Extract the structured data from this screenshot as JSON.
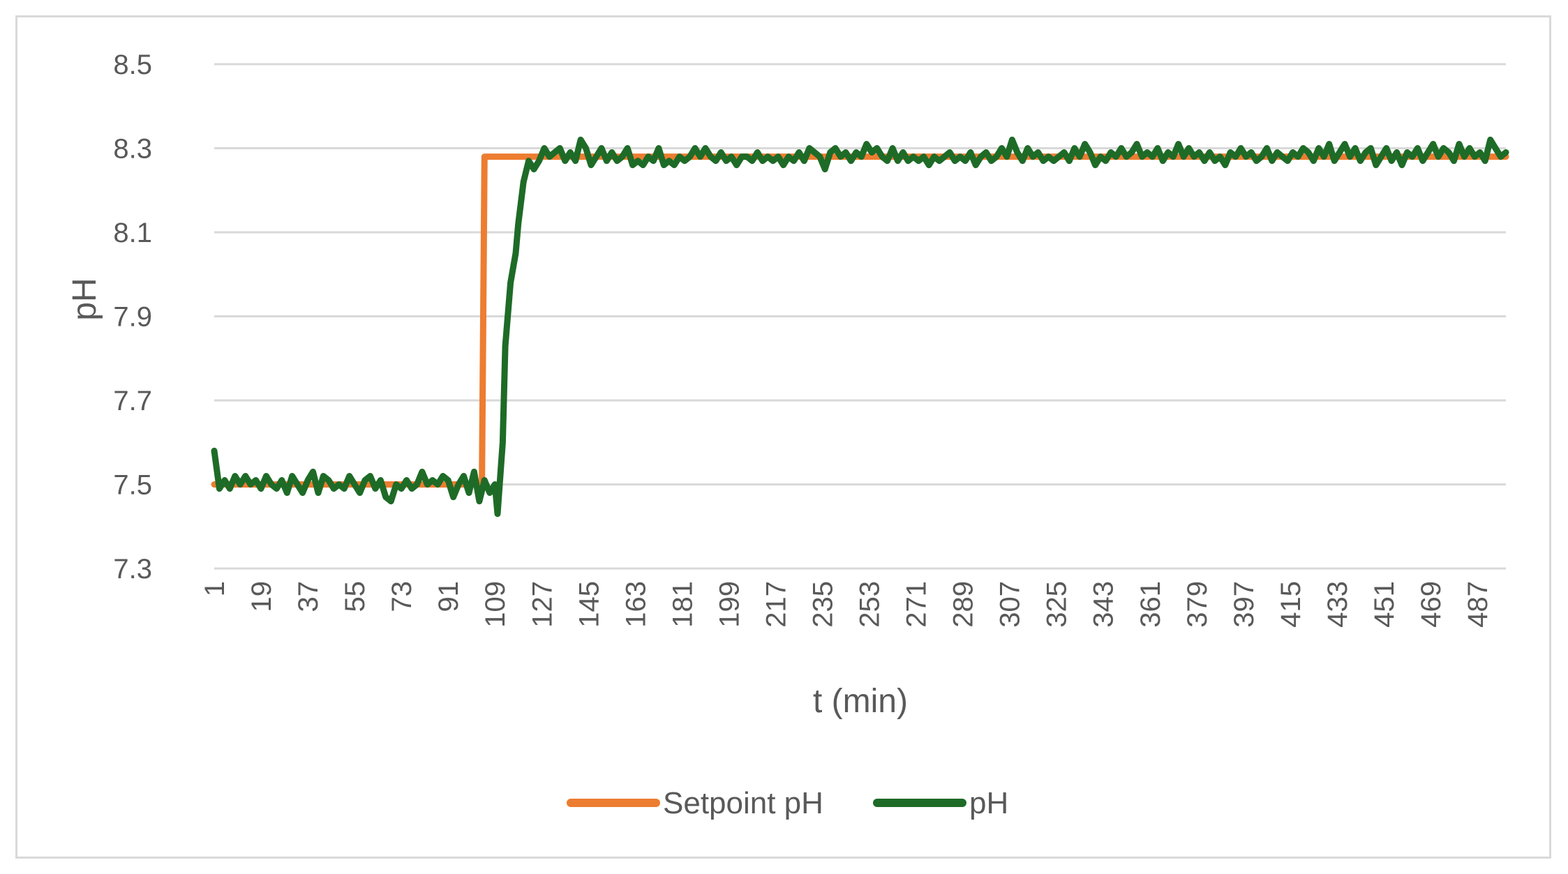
{
  "chart_data": {
    "type": "line",
    "title": "",
    "xlabel": "t (min)",
    "ylabel": "pH",
    "x_range": [
      1,
      498
    ],
    "ylim": [
      7.3,
      8.5
    ],
    "yticks": [
      "7.3",
      "7.5",
      "7.7",
      "7.9",
      "8.1",
      "8.3",
      "8.5"
    ],
    "xticks": [
      "1",
      "19",
      "37",
      "55",
      "73",
      "91",
      "109",
      "127",
      "145",
      "163",
      "181",
      "199",
      "217",
      "235",
      "253",
      "271",
      "289",
      "307",
      "325",
      "343",
      "361",
      "379",
      "397",
      "415",
      "433",
      "451",
      "469",
      "487"
    ],
    "grid": "horizontal",
    "legend_position": "bottom",
    "series": [
      {
        "name": "Setpoint pH",
        "color": "#ed7d31",
        "points": [
          [
            1,
            7.5
          ],
          [
            104,
            7.5
          ],
          [
            105,
            8.28
          ],
          [
            498,
            8.28
          ]
        ]
      },
      {
        "name": "pH",
        "color": "#1e6b27",
        "points": [
          [
            1,
            7.58
          ],
          [
            3,
            7.49
          ],
          [
            5,
            7.51
          ],
          [
            7,
            7.49
          ],
          [
            9,
            7.52
          ],
          [
            11,
            7.5
          ],
          [
            13,
            7.52
          ],
          [
            15,
            7.5
          ],
          [
            17,
            7.51
          ],
          [
            19,
            7.49
          ],
          [
            21,
            7.52
          ],
          [
            23,
            7.5
          ],
          [
            25,
            7.49
          ],
          [
            27,
            7.51
          ],
          [
            29,
            7.48
          ],
          [
            31,
            7.52
          ],
          [
            33,
            7.5
          ],
          [
            35,
            7.48
          ],
          [
            37,
            7.51
          ],
          [
            39,
            7.53
          ],
          [
            41,
            7.48
          ],
          [
            43,
            7.52
          ],
          [
            45,
            7.51
          ],
          [
            47,
            7.49
          ],
          [
            49,
            7.5
          ],
          [
            51,
            7.49
          ],
          [
            53,
            7.52
          ],
          [
            55,
            7.5
          ],
          [
            57,
            7.48
          ],
          [
            59,
            7.51
          ],
          [
            61,
            7.52
          ],
          [
            63,
            7.49
          ],
          [
            65,
            7.51
          ],
          [
            67,
            7.47
          ],
          [
            69,
            7.46
          ],
          [
            71,
            7.5
          ],
          [
            73,
            7.49
          ],
          [
            75,
            7.51
          ],
          [
            77,
            7.49
          ],
          [
            79,
            7.5
          ],
          [
            81,
            7.53
          ],
          [
            83,
            7.5
          ],
          [
            85,
            7.51
          ],
          [
            87,
            7.5
          ],
          [
            89,
            7.52
          ],
          [
            91,
            7.51
          ],
          [
            93,
            7.47
          ],
          [
            95,
            7.5
          ],
          [
            97,
            7.52
          ],
          [
            99,
            7.48
          ],
          [
            101,
            7.53
          ],
          [
            103,
            7.46
          ],
          [
            105,
            7.51
          ],
          [
            107,
            7.48
          ],
          [
            109,
            7.5
          ],
          [
            110,
            7.43
          ],
          [
            112,
            7.6
          ],
          [
            113,
            7.83
          ],
          [
            115,
            7.98
          ],
          [
            117,
            8.05
          ],
          [
            118,
            8.12
          ],
          [
            120,
            8.22
          ],
          [
            122,
            8.27
          ],
          [
            124,
            8.25
          ],
          [
            126,
            8.27
          ],
          [
            128,
            8.3
          ],
          [
            130,
            8.28
          ],
          [
            132,
            8.29
          ],
          [
            134,
            8.3
          ],
          [
            136,
            8.27
          ],
          [
            138,
            8.29
          ],
          [
            140,
            8.27
          ],
          [
            142,
            8.32
          ],
          [
            144,
            8.3
          ],
          [
            146,
            8.26
          ],
          [
            148,
            8.28
          ],
          [
            150,
            8.3
          ],
          [
            152,
            8.27
          ],
          [
            154,
            8.29
          ],
          [
            156,
            8.27
          ],
          [
            158,
            8.28
          ],
          [
            160,
            8.3
          ],
          [
            162,
            8.26
          ],
          [
            164,
            8.27
          ],
          [
            166,
            8.26
          ],
          [
            168,
            8.28
          ],
          [
            170,
            8.27
          ],
          [
            172,
            8.3
          ],
          [
            174,
            8.26
          ],
          [
            176,
            8.27
          ],
          [
            178,
            8.26
          ],
          [
            180,
            8.28
          ],
          [
            182,
            8.27
          ],
          [
            184,
            8.28
          ],
          [
            186,
            8.3
          ],
          [
            188,
            8.28
          ],
          [
            190,
            8.3
          ],
          [
            192,
            8.28
          ],
          [
            194,
            8.27
          ],
          [
            196,
            8.29
          ],
          [
            198,
            8.27
          ],
          [
            200,
            8.28
          ],
          [
            202,
            8.26
          ],
          [
            204,
            8.28
          ],
          [
            206,
            8.28
          ],
          [
            208,
            8.27
          ],
          [
            210,
            8.29
          ],
          [
            212,
            8.27
          ],
          [
            214,
            8.28
          ],
          [
            216,
            8.27
          ],
          [
            218,
            8.28
          ],
          [
            220,
            8.26
          ],
          [
            222,
            8.28
          ],
          [
            224,
            8.27
          ],
          [
            226,
            8.29
          ],
          [
            228,
            8.27
          ],
          [
            230,
            8.3
          ],
          [
            232,
            8.29
          ],
          [
            234,
            8.28
          ],
          [
            236,
            8.25
          ],
          [
            238,
            8.29
          ],
          [
            240,
            8.3
          ],
          [
            242,
            8.28
          ],
          [
            244,
            8.29
          ],
          [
            246,
            8.27
          ],
          [
            248,
            8.29
          ],
          [
            250,
            8.28
          ],
          [
            252,
            8.31
          ],
          [
            254,
            8.29
          ],
          [
            256,
            8.3
          ],
          [
            258,
            8.28
          ],
          [
            260,
            8.27
          ],
          [
            262,
            8.3
          ],
          [
            264,
            8.27
          ],
          [
            266,
            8.29
          ],
          [
            268,
            8.27
          ],
          [
            270,
            8.28
          ],
          [
            272,
            8.27
          ],
          [
            274,
            8.28
          ],
          [
            276,
            8.26
          ],
          [
            278,
            8.28
          ],
          [
            280,
            8.27
          ],
          [
            282,
            8.28
          ],
          [
            284,
            8.29
          ],
          [
            286,
            8.27
          ],
          [
            288,
            8.28
          ],
          [
            290,
            8.27
          ],
          [
            292,
            8.29
          ],
          [
            294,
            8.26
          ],
          [
            296,
            8.28
          ],
          [
            298,
            8.29
          ],
          [
            300,
            8.27
          ],
          [
            302,
            8.28
          ],
          [
            304,
            8.3
          ],
          [
            306,
            8.28
          ],
          [
            308,
            8.32
          ],
          [
            310,
            8.29
          ],
          [
            312,
            8.27
          ],
          [
            314,
            8.3
          ],
          [
            316,
            8.28
          ],
          [
            318,
            8.29
          ],
          [
            320,
            8.27
          ],
          [
            322,
            8.28
          ],
          [
            324,
            8.27
          ],
          [
            326,
            8.28
          ],
          [
            328,
            8.29
          ],
          [
            330,
            8.27
          ],
          [
            332,
            8.3
          ],
          [
            334,
            8.28
          ],
          [
            336,
            8.31
          ],
          [
            338,
            8.29
          ],
          [
            340,
            8.26
          ],
          [
            342,
            8.28
          ],
          [
            344,
            8.27
          ],
          [
            346,
            8.29
          ],
          [
            348,
            8.28
          ],
          [
            350,
            8.3
          ],
          [
            352,
            8.28
          ],
          [
            354,
            8.29
          ],
          [
            356,
            8.31
          ],
          [
            358,
            8.28
          ],
          [
            360,
            8.29
          ],
          [
            362,
            8.28
          ],
          [
            364,
            8.3
          ],
          [
            366,
            8.27
          ],
          [
            368,
            8.29
          ],
          [
            370,
            8.28
          ],
          [
            372,
            8.31
          ],
          [
            374,
            8.28
          ],
          [
            376,
            8.3
          ],
          [
            378,
            8.28
          ],
          [
            380,
            8.29
          ],
          [
            382,
            8.27
          ],
          [
            384,
            8.29
          ],
          [
            386,
            8.27
          ],
          [
            388,
            8.28
          ],
          [
            390,
            8.26
          ],
          [
            392,
            8.29
          ],
          [
            394,
            8.28
          ],
          [
            396,
            8.3
          ],
          [
            398,
            8.28
          ],
          [
            400,
            8.29
          ],
          [
            402,
            8.27
          ],
          [
            404,
            8.28
          ],
          [
            406,
            8.3
          ],
          [
            408,
            8.27
          ],
          [
            410,
            8.29
          ],
          [
            412,
            8.28
          ],
          [
            414,
            8.27
          ],
          [
            416,
            8.29
          ],
          [
            418,
            8.28
          ],
          [
            420,
            8.3
          ],
          [
            422,
            8.29
          ],
          [
            424,
            8.27
          ],
          [
            426,
            8.3
          ],
          [
            428,
            8.28
          ],
          [
            430,
            8.31
          ],
          [
            432,
            8.27
          ],
          [
            434,
            8.29
          ],
          [
            436,
            8.31
          ],
          [
            438,
            8.28
          ],
          [
            440,
            8.3
          ],
          [
            442,
            8.27
          ],
          [
            444,
            8.29
          ],
          [
            446,
            8.3
          ],
          [
            448,
            8.26
          ],
          [
            450,
            8.28
          ],
          [
            452,
            8.3
          ],
          [
            454,
            8.27
          ],
          [
            456,
            8.29
          ],
          [
            458,
            8.26
          ],
          [
            460,
            8.29
          ],
          [
            462,
            8.28
          ],
          [
            464,
            8.3
          ],
          [
            466,
            8.27
          ],
          [
            468,
            8.29
          ],
          [
            470,
            8.31
          ],
          [
            472,
            8.28
          ],
          [
            474,
            8.3
          ],
          [
            476,
            8.29
          ],
          [
            478,
            8.27
          ],
          [
            480,
            8.31
          ],
          [
            482,
            8.28
          ],
          [
            484,
            8.3
          ],
          [
            486,
            8.28
          ],
          [
            488,
            8.29
          ],
          [
            490,
            8.27
          ],
          [
            492,
            8.32
          ],
          [
            494,
            8.3
          ],
          [
            496,
            8.28
          ],
          [
            498,
            8.29
          ]
        ]
      }
    ]
  }
}
